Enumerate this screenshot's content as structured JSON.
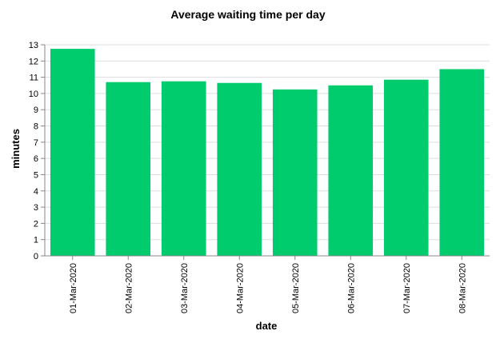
{
  "chart_data": {
    "type": "bar",
    "title": "Average waiting time per day",
    "xlabel": "date",
    "ylabel": "minutes",
    "categories": [
      "01-Mar-2020",
      "02-Mar-2020",
      "03-Mar-2020",
      "04-Mar-2020",
      "05-Mar-2020",
      "06-Mar-2020",
      "07-Mar-2020",
      "08-Mar-2020"
    ],
    "values": [
      12.75,
      10.7,
      10.75,
      10.65,
      10.25,
      10.5,
      10.85,
      11.5
    ],
    "ylim": [
      0,
      13
    ],
    "yticks": [
      0,
      1,
      2,
      3,
      4,
      5,
      6,
      7,
      8,
      9,
      10,
      11,
      12,
      13
    ],
    "grid": true,
    "colors": {
      "bar": "#00CC6E",
      "grid": "#dddddd",
      "axis": "#888888"
    }
  }
}
